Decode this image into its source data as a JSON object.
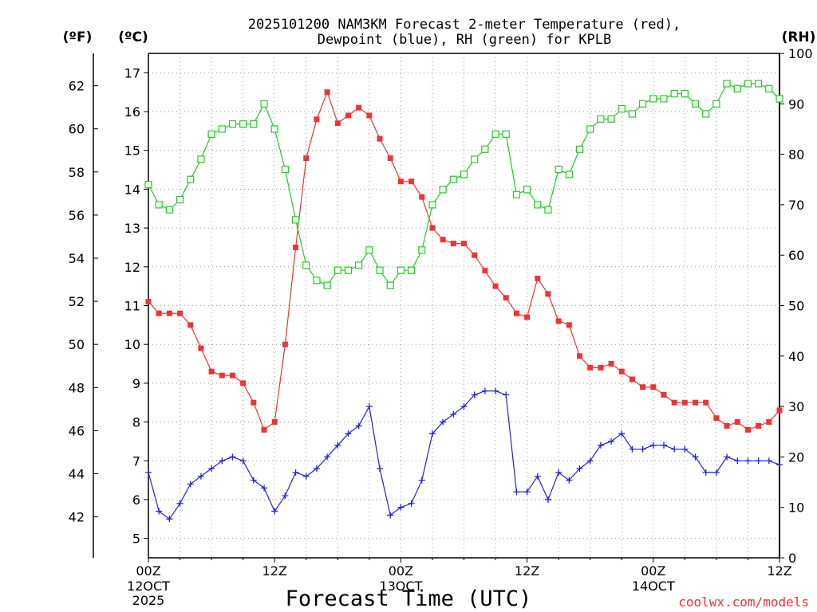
{
  "chart_data": {
    "type": "line",
    "title": "2025101200 NAM3KM Forecast 2-meter Temperature (red),",
    "title_line2": "Dewpoint (blue), RH (green) for KPLB",
    "xlabel": "Forecast Time (UTC)",
    "unit_labels": {
      "fahrenheit": "(ºF)",
      "celsius": "(ºC)",
      "rh": "(RH)"
    },
    "credit": "coolwx.com/models",
    "x_hours": [
      0,
      1,
      2,
      3,
      4,
      5,
      6,
      7,
      8,
      9,
      10,
      11,
      12,
      13,
      14,
      15,
      16,
      17,
      18,
      19,
      20,
      21,
      22,
      23,
      24,
      25,
      26,
      27,
      28,
      29,
      30,
      31,
      32,
      33,
      34,
      35,
      36,
      37,
      38,
      39,
      40,
      41,
      42,
      43,
      44,
      45,
      46,
      47,
      48,
      49,
      50,
      51,
      52,
      53,
      54,
      55,
      56,
      57,
      58,
      59,
      60
    ],
    "x_range": [
      0,
      60
    ],
    "x_ticks": [
      {
        "hour": 0,
        "label": "00Z",
        "sub": "12OCT",
        "year": "2025"
      },
      {
        "hour": 12,
        "label": "12Z",
        "sub": "",
        "year": ""
      },
      {
        "hour": 24,
        "label": "00Z",
        "sub": "13OCT",
        "year": ""
      },
      {
        "hour": 36,
        "label": "12Z",
        "sub": "",
        "year": ""
      },
      {
        "hour": 48,
        "label": "00Z",
        "sub": "14OCT",
        "year": ""
      },
      {
        "hour": 60,
        "label": "12Z",
        "sub": "",
        "year": ""
      }
    ],
    "celsius_range": [
      4.5,
      17.5
    ],
    "celsius_ticks": [
      5,
      6,
      7,
      8,
      9,
      10,
      11,
      12,
      13,
      14,
      15,
      16,
      17
    ],
    "fahrenheit_ticks": [
      42,
      44,
      46,
      48,
      50,
      52,
      54,
      56,
      58,
      60,
      62
    ],
    "rh_range": [
      0,
      100
    ],
    "rh_ticks": [
      0,
      10,
      20,
      30,
      40,
      50,
      60,
      70,
      80,
      90,
      100
    ],
    "series": [
      {
        "name": "Temperature",
        "unit": "C",
        "color": "#ee3333",
        "marker": "filled-square",
        "values": [
          11.1,
          10.8,
          10.8,
          10.8,
          10.5,
          9.9,
          9.3,
          9.2,
          9.2,
          9.0,
          8.5,
          7.8,
          8.0,
          10.0,
          12.5,
          14.8,
          15.8,
          16.5,
          15.7,
          15.9,
          16.1,
          15.9,
          15.3,
          14.8,
          14.2,
          14.2,
          13.8,
          13.0,
          12.7,
          12.6,
          12.6,
          12.3,
          11.9,
          11.5,
          11.2,
          10.8,
          10.7,
          11.7,
          11.3,
          10.6,
          10.5,
          9.7,
          9.4,
          9.4,
          9.5,
          9.3,
          9.1,
          8.9,
          8.9,
          8.7,
          8.5,
          8.5,
          8.5,
          8.5,
          8.1,
          7.9,
          8.0,
          7.8,
          7.9,
          8.0,
          8.3
        ]
      },
      {
        "name": "Dewpoint",
        "unit": "C",
        "color": "#2222dd",
        "marker": "plus",
        "values": [
          6.7,
          5.7,
          5.5,
          5.9,
          6.4,
          6.6,
          6.8,
          7.0,
          7.1,
          7.0,
          6.5,
          6.3,
          5.7,
          6.1,
          6.7,
          6.6,
          6.8,
          7.1,
          7.4,
          7.7,
          7.9,
          8.4,
          6.8,
          5.6,
          5.8,
          5.9,
          6.5,
          7.7,
          8.0,
          8.2,
          8.4,
          8.7,
          8.8,
          8.8,
          8.7,
          6.2,
          6.2,
          6.6,
          6.0,
          6.7,
          6.5,
          6.8,
          7.0,
          7.4,
          7.5,
          7.7,
          7.3,
          7.3,
          7.4,
          7.4,
          7.3,
          7.3,
          7.1,
          6.7,
          6.7,
          7.1,
          7.0,
          7.0,
          7.0,
          7.0,
          6.9
        ]
      },
      {
        "name": "RH",
        "unit": "%",
        "color": "#22cc22",
        "marker": "open-square",
        "values": [
          74,
          70,
          69,
          71,
          75,
          79,
          84,
          85,
          86,
          86,
          86,
          90,
          85,
          77,
          67,
          58,
          55,
          54,
          57,
          57,
          58,
          61,
          57,
          54,
          57,
          57,
          61,
          70,
          73,
          75,
          76,
          79,
          81,
          84,
          84,
          72,
          73,
          70,
          69,
          77,
          76,
          81,
          85,
          87,
          87,
          89,
          88,
          90,
          91,
          91,
          92,
          92,
          90,
          88,
          90,
          94,
          93,
          94,
          94,
          93,
          91
        ]
      }
    ]
  }
}
